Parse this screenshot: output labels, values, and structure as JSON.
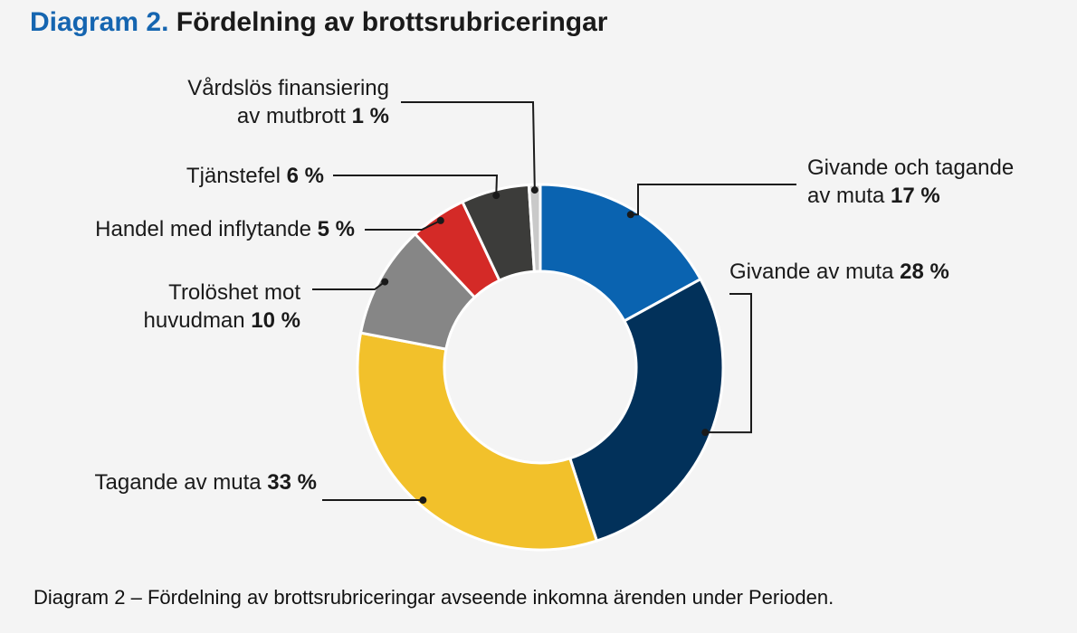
{
  "title": {
    "prefix": "Diagram 2.",
    "text": "Fördelning av brottsrubriceringar"
  },
  "caption": "Diagram 2 – Fördelning av brottsrubriceringar avseende inkomna ärenden under Perioden.",
  "chart_data": {
    "type": "pie",
    "donut": true,
    "slices": [
      {
        "name": "Givande och tagande av muta",
        "value": 17,
        "label_line1": "Givande och tagande",
        "label_line2": "av muta",
        "pct": "17 %",
        "color": "#0a63b0"
      },
      {
        "name": "Givande av muta",
        "value": 28,
        "label_line1": "Givande av muta",
        "pct": "28 %",
        "color": "#02315a"
      },
      {
        "name": "Tagande av muta",
        "value": 33,
        "label_line1": "Tagande av muta",
        "pct": "33 %",
        "color": "#f2c12b"
      },
      {
        "name": "Trolöshet mot huvudman",
        "value": 10,
        "label_line1": "Trolöshet mot",
        "label_line2": "huvudman",
        "pct": "10 %",
        "color": "#868686"
      },
      {
        "name": "Handel med inflytande",
        "value": 5,
        "label_line1": "Handel med inflytande",
        "pct": "5 %",
        "color": "#d42a27"
      },
      {
        "name": "Tjänstefel",
        "value": 6,
        "label_line1": "Tjänstefel",
        "pct": "6 %",
        "color": "#3c3c3a"
      },
      {
        "name": "Vårdslös finansiering av mutbrott",
        "value": 1,
        "label_line1": "Vårdslös finansiering",
        "label_line2": "av mutbrott",
        "pct": "1 %",
        "color": "#c9c9c9"
      }
    ]
  }
}
